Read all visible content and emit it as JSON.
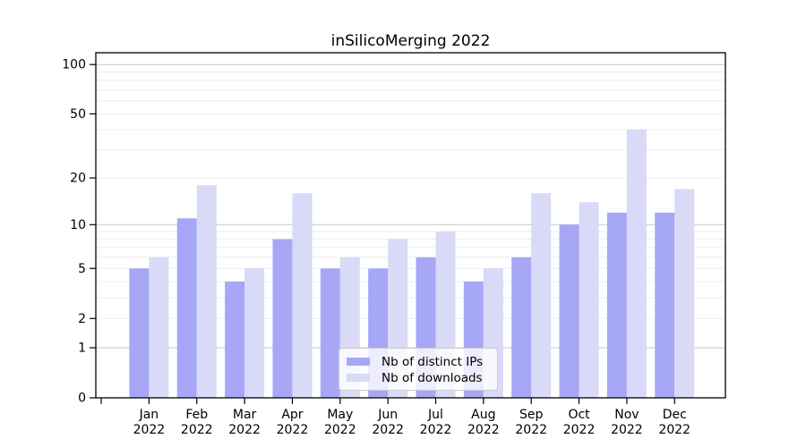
{
  "figure": {
    "background": "#ffffff",
    "text_color": "#000000",
    "spine_color": "#000000"
  },
  "chart_data": {
    "type": "bar",
    "title": "inSilicoMerging 2022",
    "categories": [
      "Jan 2022",
      "Feb 2022",
      "Mar 2022",
      "Apr 2022",
      "May 2022",
      "Jun 2022",
      "Jul 2022",
      "Aug 2022",
      "Sep 2022",
      "Oct 2022",
      "Nov 2022",
      "Dec 2022"
    ],
    "series": [
      {
        "name": "Nb of distinct IPs",
        "color": "#a7a7f7",
        "values": [
          5,
          11,
          4,
          8,
          5,
          5,
          6,
          4,
          6,
          10,
          12,
          12
        ]
      },
      {
        "name": "Nb of downloads",
        "color": "#d9d9f8",
        "values": [
          6,
          18,
          5,
          16,
          6,
          8,
          9,
          5,
          16,
          14,
          40,
          17
        ]
      }
    ],
    "y_axis": {
      "scale": "log1p",
      "ticks": [
        0,
        1,
        2,
        5,
        10,
        20,
        50,
        100
      ],
      "tick_labels": [
        "0",
        "1",
        "2",
        "5",
        "10",
        "20",
        "50",
        "100"
      ]
    },
    "grid": {
      "major_values": [
        1,
        10,
        100
      ],
      "minor_values": [
        2,
        3,
        4,
        5,
        6,
        7,
        8,
        9,
        20,
        30,
        40,
        50,
        60,
        70,
        80,
        90
      ],
      "major_color": "#c5c5c5",
      "minor_color": "#ebebeb"
    },
    "legend": {
      "position": "lower-center",
      "entries": [
        "Nb of distinct IPs",
        "Nb of downloads"
      ]
    }
  }
}
